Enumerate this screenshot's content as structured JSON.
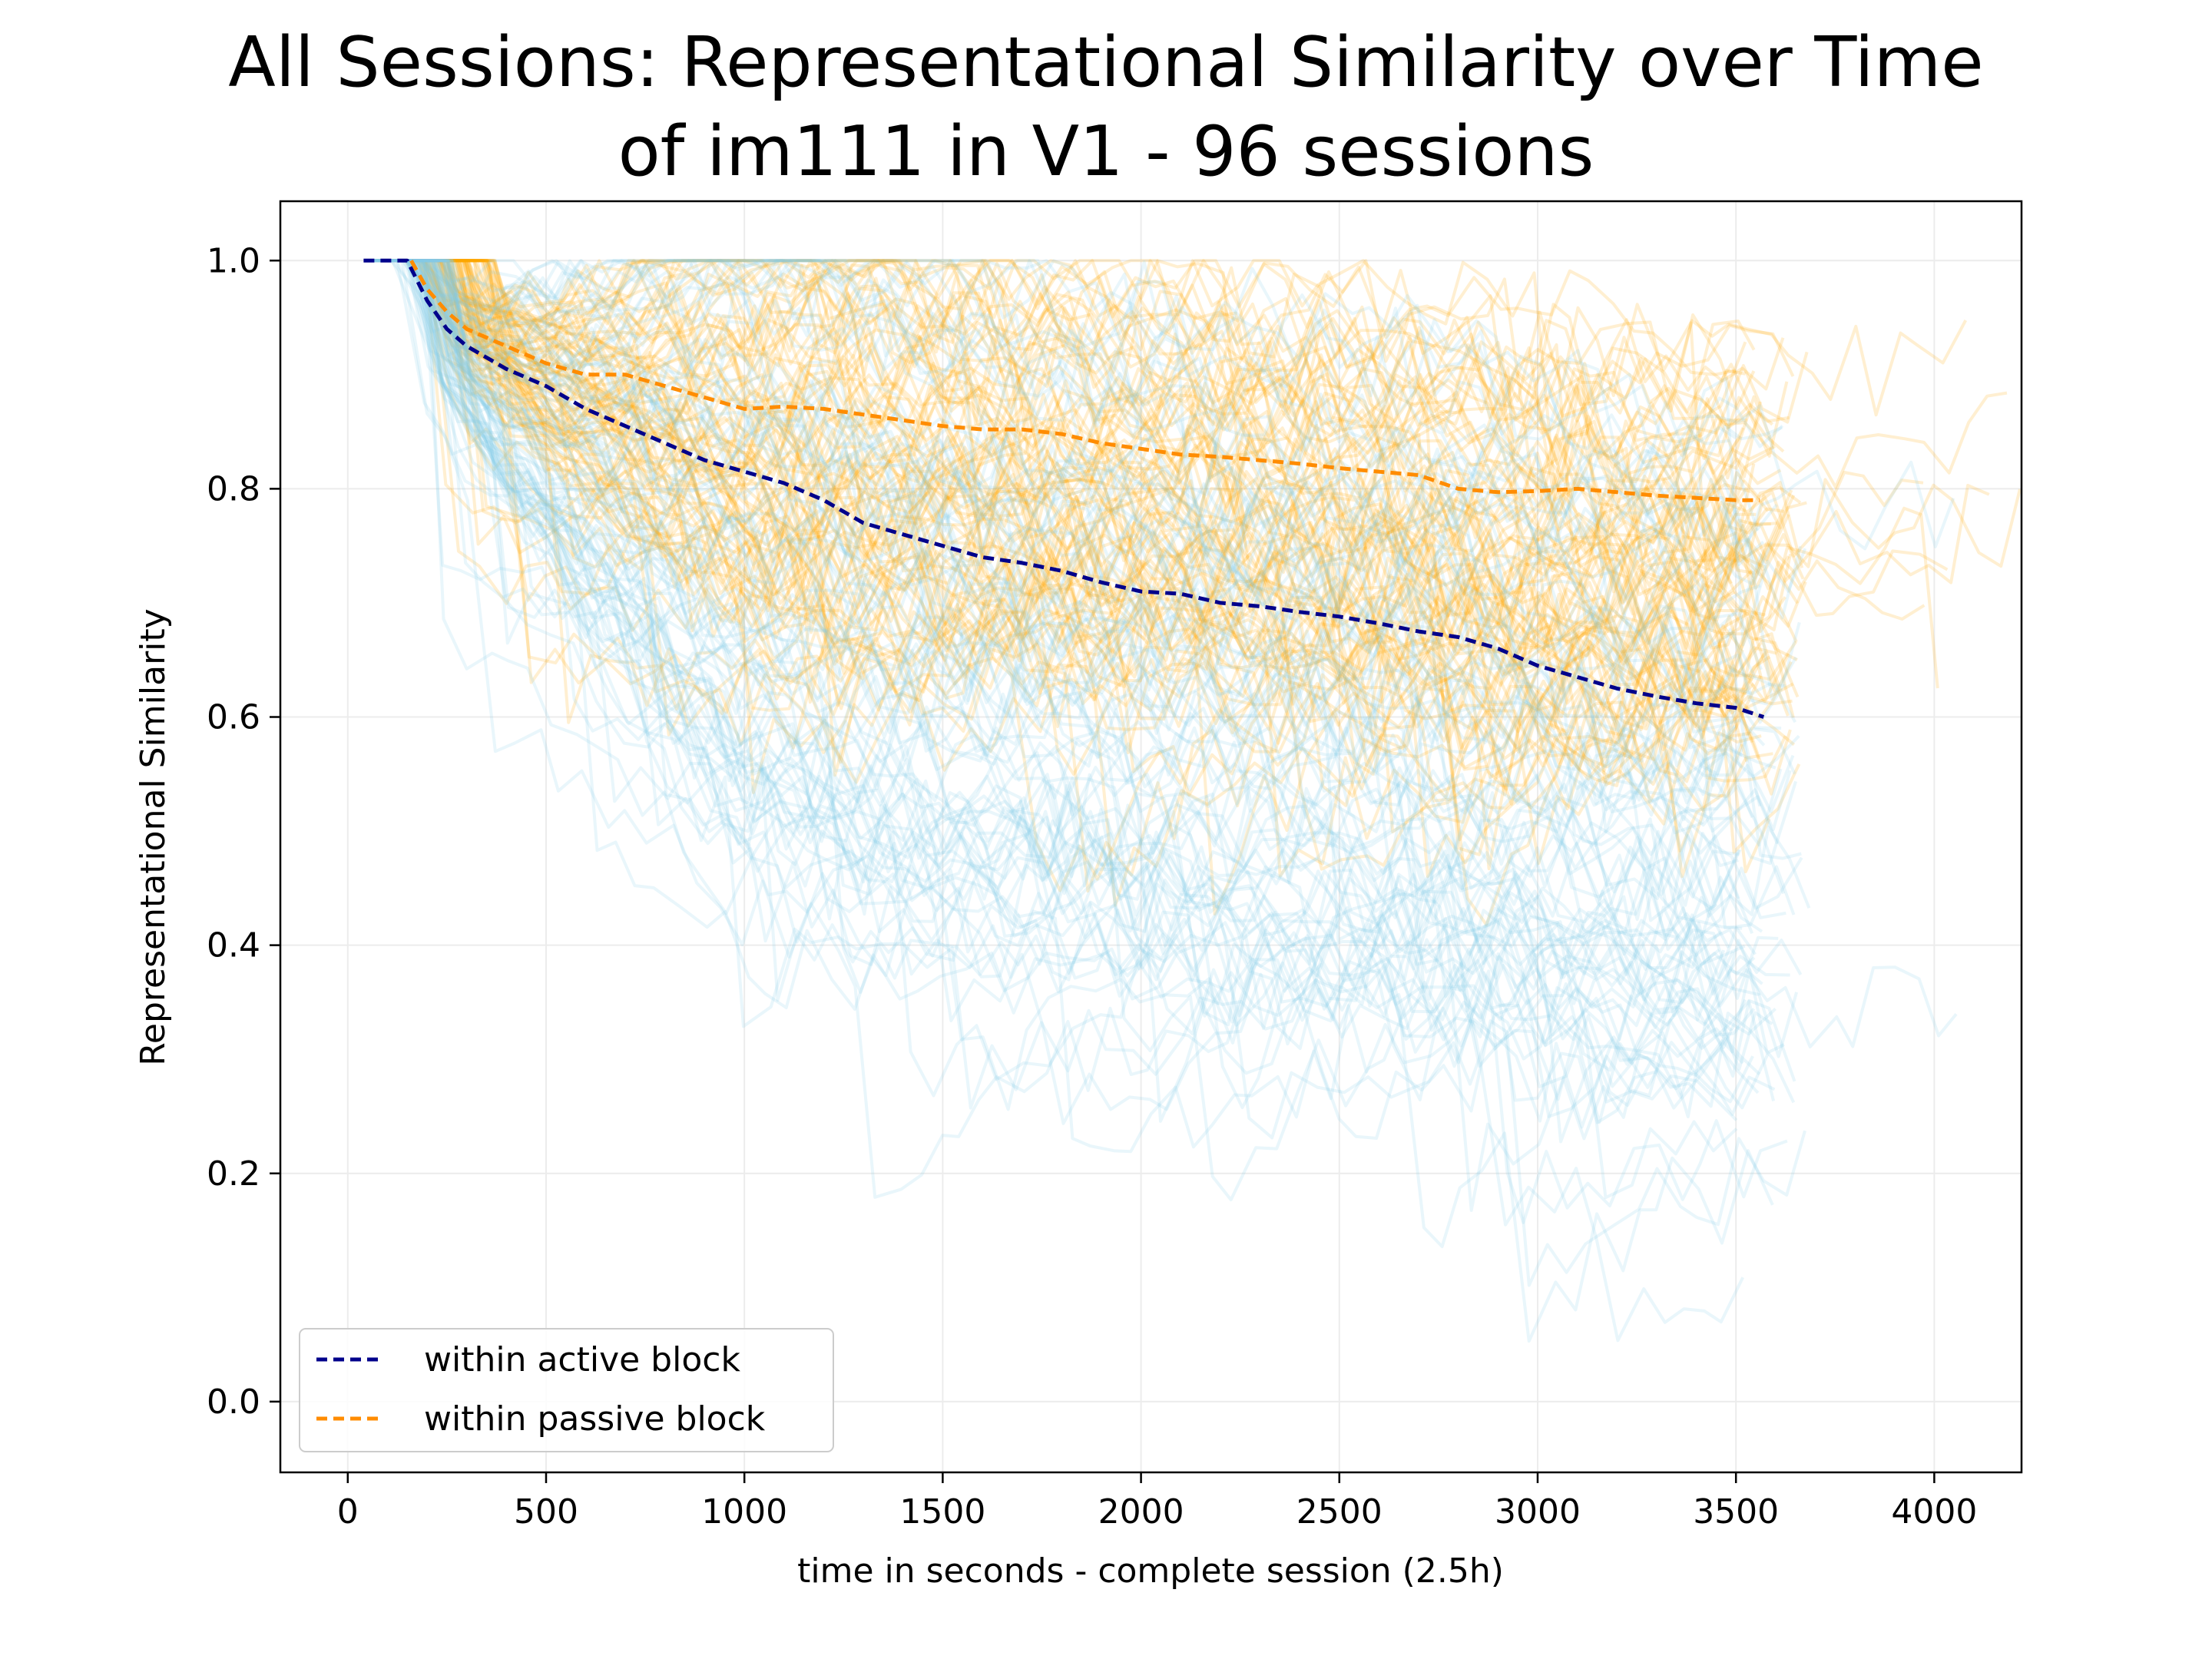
{
  "chart_data": {
    "type": "line",
    "title_lines": [
      "All Sessions: Representational Similarity over Time",
      "of im111 in V1 - 96 sessions"
    ],
    "xlabel": "time in seconds   -   complete session (2.5h)",
    "ylabel": "Representational Similarity",
    "xlim": [
      -170,
      4220
    ],
    "ylim": [
      -0.062,
      1.052
    ],
    "xticks": [
      0,
      500,
      1000,
      1500,
      2000,
      2500,
      3000,
      3500,
      4000
    ],
    "yticks": [
      0.0,
      0.2,
      0.4,
      0.6,
      0.8,
      1.0
    ],
    "ytick_labels": [
      "0.0",
      "0.2",
      "0.4",
      "0.6",
      "0.8",
      "1.0"
    ],
    "grid": true,
    "legend_position": "lower-left",
    "background_traces": {
      "description_count": 96,
      "active_color": "#87ceeb",
      "passive_color": "#ffa500",
      "opacity": 0.18
    },
    "series": [
      {
        "name": "within active block",
        "color": "#00008b",
        "style": "dashed",
        "x": [
          40,
          150,
          200,
          250,
          300,
          400,
          500,
          600,
          700,
          800,
          900,
          1000,
          1100,
          1200,
          1300,
          1400,
          1500,
          1600,
          1700,
          1800,
          1900,
          2000,
          2100,
          2200,
          2300,
          2400,
          2500,
          2600,
          2700,
          2800,
          2900,
          3000,
          3100,
          3200,
          3300,
          3400,
          3500,
          3570
        ],
        "y": [
          1.0,
          1.0,
          0.965,
          0.94,
          0.925,
          0.905,
          0.89,
          0.87,
          0.855,
          0.84,
          0.825,
          0.815,
          0.805,
          0.79,
          0.77,
          0.76,
          0.75,
          0.74,
          0.735,
          0.728,
          0.718,
          0.71,
          0.708,
          0.7,
          0.697,
          0.692,
          0.688,
          0.682,
          0.675,
          0.67,
          0.66,
          0.645,
          0.635,
          0.625,
          0.618,
          0.612,
          0.608,
          0.6
        ]
      },
      {
        "name": "within passive block",
        "color": "#ff8c00",
        "style": "dashed",
        "x": [
          160,
          200,
          250,
          300,
          400,
          500,
          600,
          700,
          800,
          900,
          1000,
          1100,
          1200,
          1300,
          1400,
          1500,
          1600,
          1700,
          1800,
          1900,
          2000,
          2100,
          2200,
          2300,
          2400,
          2500,
          2600,
          2700,
          2800,
          2900,
          3000,
          3100,
          3200,
          3300,
          3400,
          3500,
          3560
        ],
        "y": [
          1.0,
          0.975,
          0.955,
          0.94,
          0.925,
          0.91,
          0.9,
          0.9,
          0.89,
          0.88,
          0.87,
          0.872,
          0.87,
          0.865,
          0.86,
          0.855,
          0.852,
          0.852,
          0.848,
          0.84,
          0.835,
          0.83,
          0.828,
          0.825,
          0.822,
          0.818,
          0.815,
          0.812,
          0.8,
          0.797,
          0.798,
          0.8,
          0.797,
          0.794,
          0.792,
          0.79,
          0.79
        ]
      }
    ]
  }
}
